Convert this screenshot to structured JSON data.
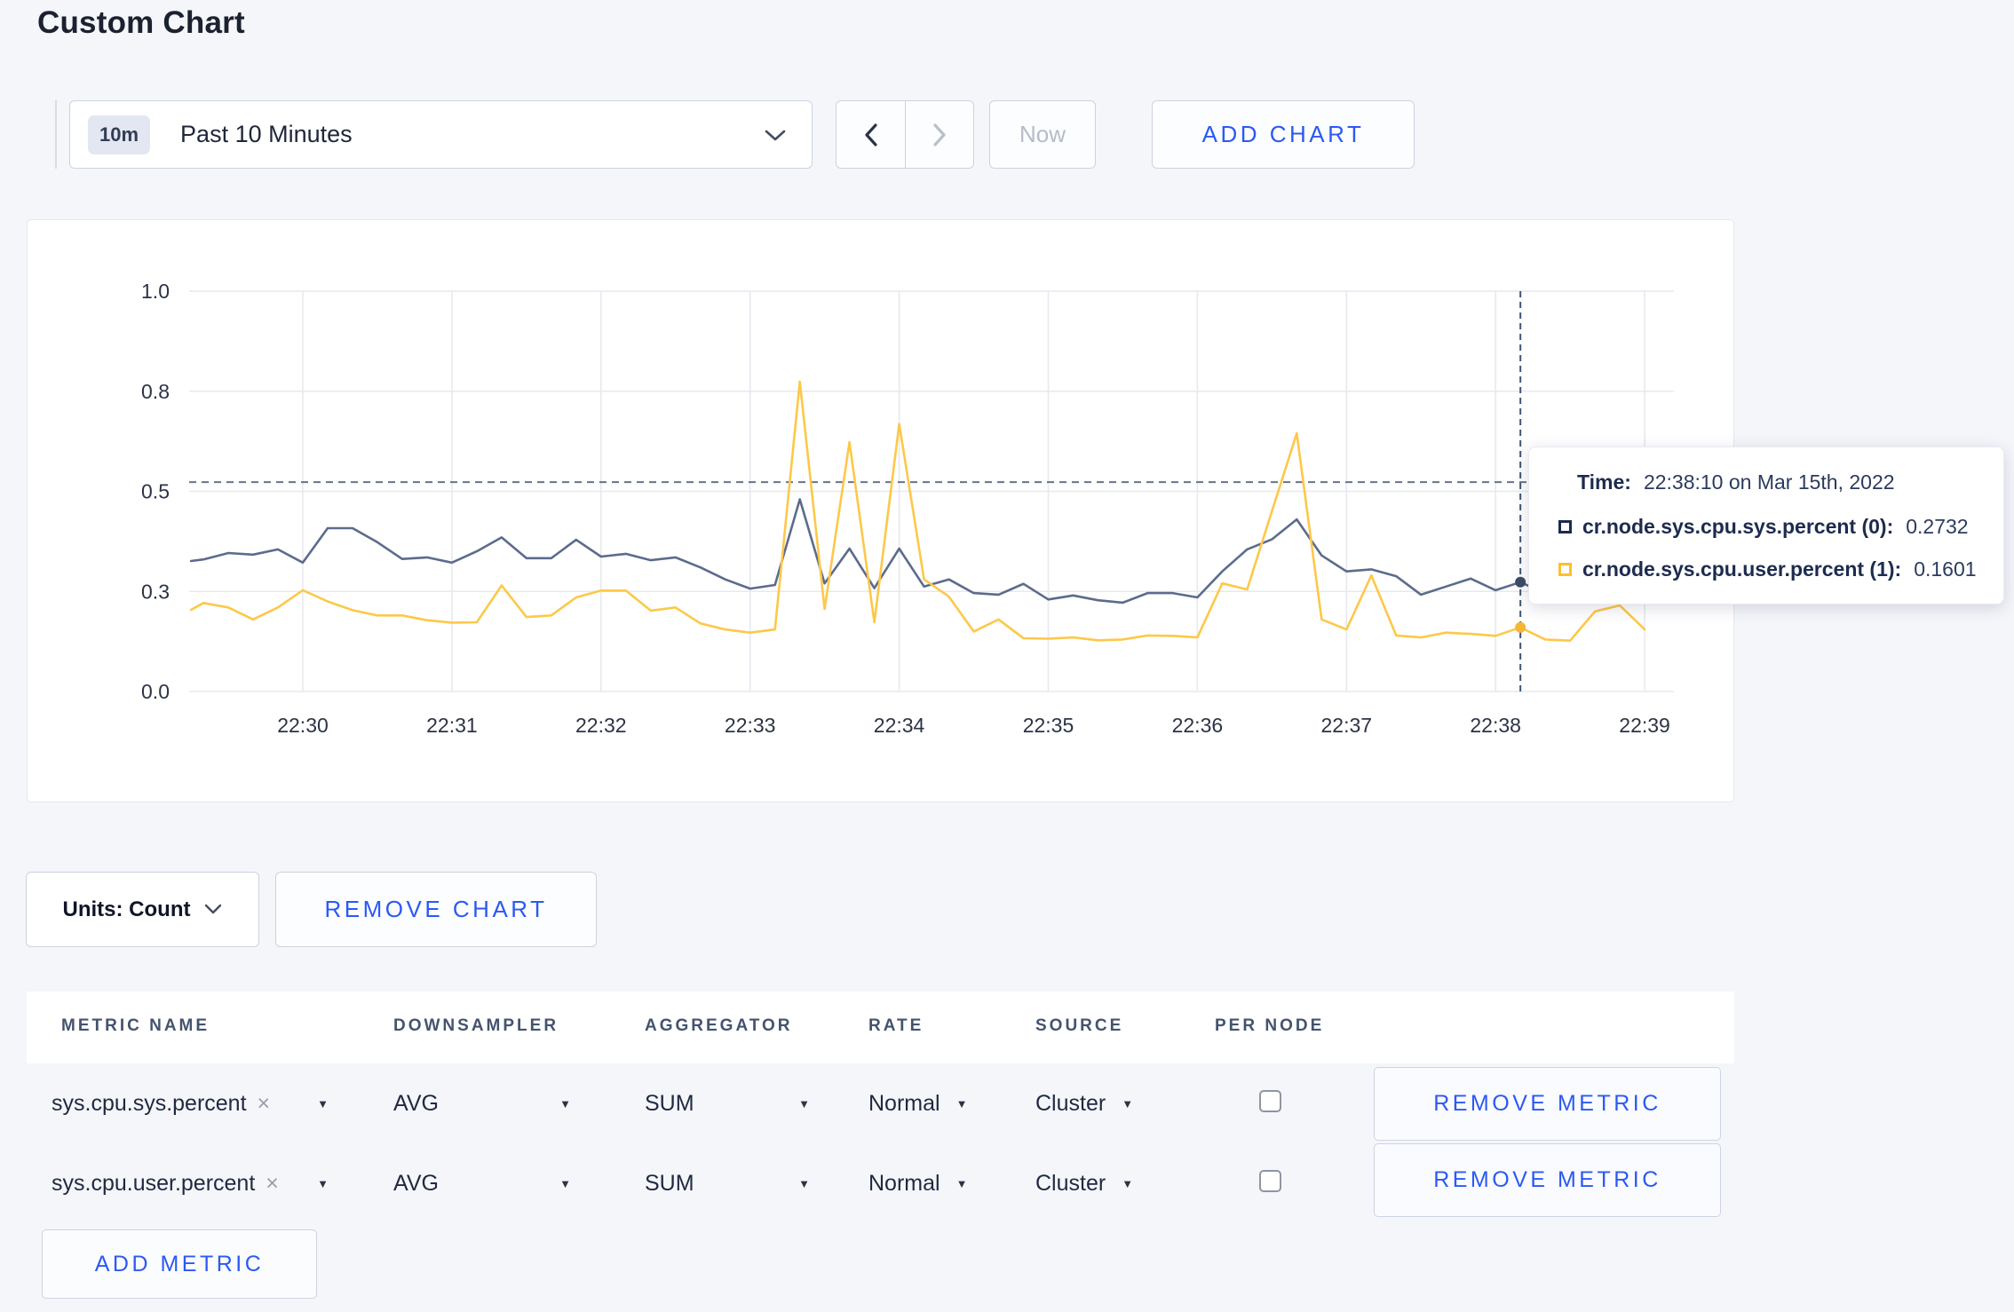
{
  "page": {
    "title": "Custom Chart",
    "background_color": "#f4f6fa",
    "accent_blue": "#2b59f5"
  },
  "toolbar": {
    "time_selector": {
      "badge": "10m",
      "label": "Past 10 Minutes"
    },
    "nav": {
      "prev_enabled": true,
      "next_enabled": false
    },
    "now_label": "Now",
    "add_chart_label": "ADD CHART"
  },
  "chart_data": {
    "type": "line",
    "title": "",
    "xlabel": "",
    "ylabel": "",
    "ylim": [
      0,
      1
    ],
    "grid": true,
    "legend_position": "hover-tooltip",
    "y_ticks": [
      {
        "value": 0,
        "label": "0.0"
      },
      {
        "value": 0.25,
        "label": "0.3"
      },
      {
        "value": 0.5,
        "label": "0.5"
      },
      {
        "value": 0.75,
        "label": "0.8"
      },
      {
        "value": 1,
        "label": "1.0"
      }
    ],
    "x_unit": "seconds after 22:30:00",
    "x_ticks": [
      {
        "t": 0,
        "label": "22:30"
      },
      {
        "t": 60,
        "label": "22:31"
      },
      {
        "t": 120,
        "label": "22:32"
      },
      {
        "t": 180,
        "label": "22:33"
      },
      {
        "t": 240,
        "label": "22:34"
      },
      {
        "t": 300,
        "label": "22:35"
      },
      {
        "t": 360,
        "label": "22:36"
      },
      {
        "t": 420,
        "label": "22:37"
      },
      {
        "t": 480,
        "label": "22:38"
      },
      {
        "t": 540,
        "label": "22:39"
      }
    ],
    "hover": {
      "t": 490,
      "time": "22:38:10",
      "h_line_value": 0.523,
      "values": [
        0.2732,
        0.1601
      ]
    },
    "series": [
      {
        "name": "cr.node.sys.cpu.sys.percent",
        "color": "#5c6b8d",
        "marker_color": "#3d4c68",
        "points": [
          [
            -45,
            0.326
          ],
          [
            -40,
            0.33
          ],
          [
            -30,
            0.346
          ],
          [
            -20,
            0.342
          ],
          [
            -10,
            0.355
          ],
          [
            0,
            0.322
          ],
          [
            10,
            0.408
          ],
          [
            20,
            0.408
          ],
          [
            30,
            0.373
          ],
          [
            40,
            0.331
          ],
          [
            50,
            0.335
          ],
          [
            60,
            0.322
          ],
          [
            70,
            0.35
          ],
          [
            80,
            0.385
          ],
          [
            90,
            0.333
          ],
          [
            100,
            0.333
          ],
          [
            110,
            0.379
          ],
          [
            120,
            0.337
          ],
          [
            130,
            0.344
          ],
          [
            140,
            0.328
          ],
          [
            150,
            0.335
          ],
          [
            160,
            0.31
          ],
          [
            170,
            0.28
          ],
          [
            180,
            0.257
          ],
          [
            190,
            0.266
          ],
          [
            200,
            0.48
          ],
          [
            210,
            0.27
          ],
          [
            220,
            0.357
          ],
          [
            230,
            0.258
          ],
          [
            240,
            0.357
          ],
          [
            250,
            0.262
          ],
          [
            260,
            0.28
          ],
          [
            270,
            0.246
          ],
          [
            280,
            0.242
          ],
          [
            290,
            0.269
          ],
          [
            300,
            0.23
          ],
          [
            310,
            0.24
          ],
          [
            320,
            0.228
          ],
          [
            330,
            0.222
          ],
          [
            340,
            0.246
          ],
          [
            350,
            0.246
          ],
          [
            360,
            0.235
          ],
          [
            370,
            0.3
          ],
          [
            380,
            0.355
          ],
          [
            390,
            0.38
          ],
          [
            400,
            0.43
          ],
          [
            410,
            0.34
          ],
          [
            420,
            0.3
          ],
          [
            430,
            0.305
          ],
          [
            440,
            0.288
          ],
          [
            450,
            0.242
          ],
          [
            460,
            0.262
          ],
          [
            470,
            0.282
          ],
          [
            480,
            0.253
          ],
          [
            490,
            0.2732
          ],
          [
            500,
            0.245
          ]
        ]
      },
      {
        "name": "cr.node.sys.cpu.user.percent",
        "color": "#fdc849",
        "marker_color": "#f3b637",
        "points": [
          [
            -45,
            0.204
          ],
          [
            -40,
            0.221
          ],
          [
            -30,
            0.21
          ],
          [
            -20,
            0.18
          ],
          [
            -10,
            0.21
          ],
          [
            0,
            0.253
          ],
          [
            10,
            0.225
          ],
          [
            20,
            0.203
          ],
          [
            30,
            0.19
          ],
          [
            40,
            0.19
          ],
          [
            50,
            0.178
          ],
          [
            60,
            0.172
          ],
          [
            70,
            0.173
          ],
          [
            80,
            0.265
          ],
          [
            90,
            0.186
          ],
          [
            100,
            0.19
          ],
          [
            110,
            0.235
          ],
          [
            120,
            0.252
          ],
          [
            130,
            0.252
          ],
          [
            140,
            0.202
          ],
          [
            150,
            0.21
          ],
          [
            160,
            0.17
          ],
          [
            170,
            0.155
          ],
          [
            180,
            0.147
          ],
          [
            190,
            0.155
          ],
          [
            200,
            0.774
          ],
          [
            210,
            0.206
          ],
          [
            220,
            0.623
          ],
          [
            230,
            0.173
          ],
          [
            240,
            0.668
          ],
          [
            250,
            0.28
          ],
          [
            260,
            0.237
          ],
          [
            270,
            0.15
          ],
          [
            280,
            0.18
          ],
          [
            290,
            0.133
          ],
          [
            300,
            0.132
          ],
          [
            310,
            0.135
          ],
          [
            320,
            0.128
          ],
          [
            330,
            0.13
          ],
          [
            340,
            0.14
          ],
          [
            350,
            0.139
          ],
          [
            360,
            0.135
          ],
          [
            370,
            0.27
          ],
          [
            380,
            0.255
          ],
          [
            390,
            0.45
          ],
          [
            400,
            0.645
          ],
          [
            410,
            0.18
          ],
          [
            420,
            0.155
          ],
          [
            430,
            0.29
          ],
          [
            440,
            0.14
          ],
          [
            450,
            0.135
          ],
          [
            460,
            0.147
          ],
          [
            470,
            0.144
          ],
          [
            480,
            0.139
          ],
          [
            490,
            0.1601
          ],
          [
            500,
            0.13
          ],
          [
            510,
            0.127
          ],
          [
            520,
            0.2
          ],
          [
            530,
            0.215
          ],
          [
            540,
            0.155
          ]
        ]
      }
    ]
  },
  "tooltip": {
    "time_label": "Time:",
    "time_value": "22:38:10 on Mar 15th, 2022",
    "rows": [
      {
        "label": "cr.node.sys.cpu.sys.percent (0):",
        "value": "0.2732",
        "swatch_color": "#1b2a4e"
      },
      {
        "label": "cr.node.sys.cpu.user.percent (1):",
        "value": "0.1601",
        "swatch_color": "#fcc02e"
      }
    ]
  },
  "chart_controls": {
    "units_label": "Units: Count",
    "remove_chart_label": "REMOVE CHART"
  },
  "metrics_table": {
    "columns": [
      "METRIC NAME",
      "DOWNSAMPLER",
      "AGGREGATOR",
      "RATE",
      "SOURCE",
      "PER NODE"
    ],
    "rows": [
      {
        "metric": "sys.cpu.sys.percent",
        "downsampler": "AVG",
        "aggregator": "SUM",
        "rate": "Normal",
        "source": "Cluster",
        "per_node_checked": false,
        "remove_label": "REMOVE METRIC"
      },
      {
        "metric": "sys.cpu.user.percent",
        "downsampler": "AVG",
        "aggregator": "SUM",
        "rate": "Normal",
        "source": "Cluster",
        "per_node_checked": false,
        "remove_label": "REMOVE METRIC"
      }
    ],
    "add_metric_label": "ADD METRIC"
  },
  "icons": {
    "close_x": "×",
    "caret_down": "▼"
  }
}
